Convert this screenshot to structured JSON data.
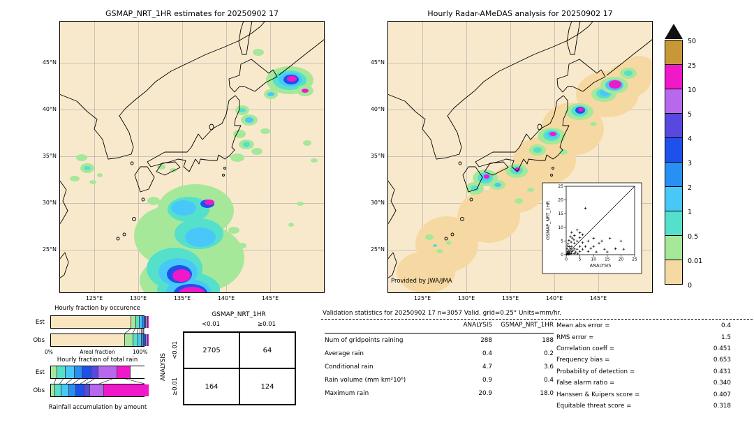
{
  "palette": {
    "map_bg": "#f9e9cc",
    "halo": "#f6d9a2",
    "cream": "#f9e6c0",
    "white": "#ffffff",
    "l1": "#a6e89a",
    "l2": "#55e0cc",
    "l3": "#48c8f8",
    "l4": "#2890f4",
    "l5": "#1e50ec",
    "l6": "#5848e0",
    "l7": "#b868ec",
    "l8": "#f018c8",
    "l9": "#c89838"
  },
  "chart_data": [
    {
      "id": "gsmap_map",
      "type": "heatmap",
      "title": "GSMAP_NRT_1HR estimates for 20250902 17",
      "units": "mm/hr",
      "lat_ticks": [
        "45°N",
        "40°N",
        "35°N",
        "30°N",
        "25°N"
      ],
      "lon_ticks": [
        "125°E",
        "130°E",
        "135°E",
        "140°E",
        "145°E"
      ],
      "lon_range": [
        121,
        151.2
      ],
      "lat_range": [
        20.4,
        49.5
      ],
      "blobs": [
        [
          303,
          105,
          10,
          7,
          "l1"
        ],
        [
          303,
          105,
          5,
          3,
          "l3"
        ],
        [
          330,
          85,
          34,
          20,
          "l1"
        ],
        [
          330,
          85,
          24,
          14,
          "l2"
        ],
        [
          331,
          84,
          17,
          10,
          "l3"
        ],
        [
          332,
          84,
          11,
          7,
          "l5"
        ],
        [
          333,
          83,
          7,
          4,
          "l8"
        ],
        [
          352,
          100,
          12,
          8,
          "l1"
        ],
        [
          352,
          100,
          5,
          3,
          "l8"
        ],
        [
          285,
          45,
          8,
          5,
          "l1"
        ],
        [
          262,
          128,
          10,
          7,
          "l1"
        ],
        [
          262,
          128,
          5,
          3,
          "l2"
        ],
        [
          272,
          142,
          12,
          8,
          "l1"
        ],
        [
          272,
          142,
          6,
          4,
          "l3"
        ],
        [
          258,
          162,
          9,
          6,
          "l1"
        ],
        [
          268,
          177,
          11,
          7,
          "l1"
        ],
        [
          268,
          177,
          5,
          4,
          "l2"
        ],
        [
          283,
          187,
          8,
          5,
          "l1"
        ],
        [
          255,
          196,
          10,
          6,
          "l1"
        ],
        [
          295,
          158,
          7,
          4,
          "l1"
        ],
        [
          32,
          196,
          8,
          5,
          "l1"
        ],
        [
          40,
          211,
          10,
          7,
          "l1"
        ],
        [
          40,
          211,
          5,
          3,
          "l2"
        ],
        [
          22,
          226,
          7,
          4,
          "l1"
        ],
        [
          48,
          231,
          5,
          3,
          "l1"
        ],
        [
          58,
          221,
          4,
          3,
          "l1"
        ],
        [
          146,
          209,
          6,
          4,
          "l1"
        ],
        [
          163,
          214,
          5,
          3,
          "l1"
        ],
        [
          250,
          300,
          8,
          5,
          "l1"
        ],
        [
          262,
          322,
          6,
          4,
          "l1"
        ],
        [
          135,
          258,
          9,
          6,
          "l1"
        ],
        [
          120,
          290,
          7,
          5,
          "l1"
        ],
        [
          195,
          272,
          55,
          38,
          "l1"
        ],
        [
          155,
          308,
          48,
          42,
          "l1"
        ],
        [
          205,
          340,
          60,
          48,
          "l1"
        ],
        [
          170,
          372,
          55,
          35,
          "l1"
        ],
        [
          185,
          270,
          30,
          18,
          "l2"
        ],
        [
          200,
          305,
          35,
          22,
          "l2"
        ],
        [
          165,
          355,
          40,
          30,
          "l2"
        ],
        [
          185,
          385,
          45,
          25,
          "l2"
        ],
        [
          178,
          268,
          18,
          11,
          "l3"
        ],
        [
          202,
          310,
          22,
          14,
          "l3"
        ],
        [
          170,
          360,
          28,
          20,
          "l3"
        ],
        [
          185,
          388,
          32,
          18,
          "l3"
        ],
        [
          212,
          262,
          10,
          6,
          "l5"
        ],
        [
          172,
          363,
          18,
          13,
          "l5"
        ],
        [
          188,
          390,
          24,
          13,
          "l5"
        ],
        [
          215,
          260,
          7,
          4,
          "l8"
        ],
        [
          175,
          365,
          13,
          9,
          "l8"
        ],
        [
          190,
          392,
          20,
          11,
          "l8"
        ],
        [
          160,
          398,
          12,
          7,
          "l8"
        ],
        [
          355,
          175,
          6,
          4,
          "l1"
        ],
        [
          365,
          200,
          5,
          3,
          "l1"
        ],
        [
          345,
          262,
          5,
          3,
          "l1"
        ],
        [
          332,
          292,
          4,
          3,
          "l1"
        ]
      ]
    },
    {
      "id": "radar_map",
      "type": "heatmap",
      "title": "Hourly Radar-AMeDAS analysis for 20250902 17",
      "credit": "Provided by JWA/JMA",
      "units": "mm/hr",
      "lat_ticks": [
        "45°N",
        "40°N",
        "35°N",
        "30°N",
        "25°N"
      ],
      "lon_ticks": [
        "125°E",
        "130°E",
        "135°E",
        "140°E",
        "145°E"
      ],
      "lon_range": [
        121,
        151.2
      ],
      "lat_range": [
        20.4,
        49.5
      ],
      "blobs": [
        [
          55,
          360,
          42,
          30,
          "halo"
        ],
        [
          85,
          320,
          45,
          40,
          "halo"
        ],
        [
          145,
          280,
          45,
          38,
          "halo"
        ],
        [
          185,
          240,
          40,
          35,
          "halo"
        ],
        [
          210,
          225,
          35,
          30,
          "halo"
        ],
        [
          225,
          200,
          45,
          35,
          "halo"
        ],
        [
          265,
          155,
          45,
          38,
          "halo"
        ],
        [
          315,
          105,
          45,
          33,
          "halo"
        ],
        [
          345,
          85,
          32,
          25,
          "halo"
        ],
        [
          360,
          70,
          25,
          20,
          "halo"
        ],
        [
          60,
          310,
          6,
          4,
          "l1"
        ],
        [
          75,
          330,
          5,
          3,
          "l1"
        ],
        [
          88,
          318,
          4,
          3,
          "l1"
        ],
        [
          68,
          322,
          3,
          2,
          "l2"
        ],
        [
          140,
          225,
          18,
          12,
          "l1"
        ],
        [
          140,
          225,
          11,
          8,
          "l2"
        ],
        [
          141,
          224,
          7,
          5,
          "l3"
        ],
        [
          142,
          223,
          4,
          3,
          "l8"
        ],
        [
          125,
          240,
          13,
          9,
          "l1"
        ],
        [
          125,
          240,
          6,
          4,
          "l2"
        ],
        [
          158,
          235,
          11,
          7,
          "l1"
        ],
        [
          158,
          235,
          5,
          3,
          "l3"
        ],
        [
          185,
          215,
          16,
          10,
          "l1"
        ],
        [
          185,
          214,
          9,
          6,
          "l2"
        ],
        [
          186,
          213,
          4,
          3,
          "l8"
        ],
        [
          235,
          165,
          20,
          12,
          "l1"
        ],
        [
          235,
          164,
          12,
          8,
          "l2"
        ],
        [
          236,
          163,
          8,
          5,
          "l3"
        ],
        [
          237,
          162,
          5,
          3,
          "l8"
        ],
        [
          215,
          185,
          12,
          8,
          "l1"
        ],
        [
          215,
          185,
          6,
          4,
          "l2"
        ],
        [
          275,
          130,
          20,
          12,
          "l1"
        ],
        [
          275,
          129,
          12,
          8,
          "l2"
        ],
        [
          276,
          128,
          7,
          5,
          "l5"
        ],
        [
          277,
          127,
          4,
          3,
          "l8"
        ],
        [
          310,
          105,
          18,
          11,
          "l1"
        ],
        [
          310,
          104,
          11,
          7,
          "l2"
        ],
        [
          311,
          103,
          7,
          5,
          "l3"
        ],
        [
          325,
          92,
          20,
          12,
          "l1"
        ],
        [
          325,
          92,
          13,
          8,
          "l3"
        ],
        [
          326,
          91,
          9,
          6,
          "l8"
        ],
        [
          345,
          75,
          12,
          8,
          "l1"
        ],
        [
          345,
          75,
          6,
          4,
          "l2"
        ],
        [
          188,
          258,
          6,
          4,
          "l1"
        ],
        [
          205,
          242,
          5,
          3,
          "l1"
        ],
        [
          252,
          188,
          6,
          4,
          "l1"
        ],
        [
          295,
          148,
          5,
          3,
          "l1"
        ]
      ]
    },
    {
      "id": "inset_scatter",
      "type": "scatter",
      "xlabel": "ANALYSIS",
      "ylabel": "GSMAP_NRT_1HR",
      "xlim": [
        0,
        25
      ],
      "ylim": [
        0,
        25
      ],
      "tick_labels": [
        "0",
        "5",
        "10",
        "15",
        "20",
        "25"
      ],
      "identity_line": true,
      "marker": "+",
      "points": [
        [
          0.2,
          0.1
        ],
        [
          0.4,
          0.6
        ],
        [
          0.5,
          0.2
        ],
        [
          0.6,
          1.2
        ],
        [
          0.8,
          0.4
        ],
        [
          1,
          0.1
        ],
        [
          1,
          1.6
        ],
        [
          1.2,
          0.8
        ],
        [
          1.5,
          0.3
        ],
        [
          1.6,
          2.2
        ],
        [
          2,
          0.5
        ],
        [
          2,
          1.1
        ],
        [
          2,
          3
        ],
        [
          2.5,
          1.5
        ],
        [
          3,
          0.4
        ],
        [
          3,
          2.1
        ],
        [
          3,
          4.2
        ],
        [
          3.5,
          1
        ],
        [
          4,
          2
        ],
        [
          4,
          5
        ],
        [
          4.2,
          0.3
        ],
        [
          5,
          1.2
        ],
        [
          5,
          3
        ],
        [
          5,
          6.2
        ],
        [
          6,
          2
        ],
        [
          6,
          4.4
        ],
        [
          7,
          17
        ],
        [
          7,
          3
        ],
        [
          8,
          1.2
        ],
        [
          8,
          5
        ],
        [
          9,
          2.3
        ],
        [
          10,
          3
        ],
        [
          10,
          6
        ],
        [
          11,
          1
        ],
        [
          12,
          4.2
        ],
        [
          13,
          5
        ],
        [
          14,
          2
        ],
        [
          15,
          1
        ],
        [
          16,
          6
        ],
        [
          18,
          2.2
        ],
        [
          20,
          5
        ],
        [
          21,
          2
        ],
        [
          2.2,
          6.1
        ],
        [
          1.8,
          4.6
        ],
        [
          0.5,
          3.1
        ],
        [
          1,
          5.2
        ],
        [
          3,
          7
        ],
        [
          2,
          8.1
        ],
        [
          4,
          9
        ],
        [
          6,
          7.3
        ],
        [
          5,
          8
        ],
        [
          0.3,
          2.1
        ],
        [
          1.5,
          6.6
        ],
        [
          2.8,
          5.4
        ],
        [
          0.7,
          4
        ],
        [
          1.2,
          2.9
        ]
      ]
    },
    {
      "id": "colorbar",
      "type": "legend",
      "units": "mm/hr",
      "overflow_marker": "black-up-triangle",
      "boundary_labels": [
        "50",
        "25",
        "10",
        "5",
        "4",
        "3",
        "2",
        "1",
        "0.5",
        "0.01",
        "0"
      ],
      "segment_colors_top_to_bottom": [
        "#c89838",
        "#f018c8",
        "#b868ec",
        "#5848e0",
        "#1e50ec",
        "#2890f4",
        "#48c8f8",
        "#55e0cc",
        "#a6e89a",
        "#f6d9a2"
      ]
    },
    {
      "id": "occurrence_bars",
      "type": "bar",
      "title": "Hourly fraction by occurence",
      "rows": [
        "Est",
        "Obs"
      ],
      "x0": "0%",
      "x1": "100%",
      "xlabel": "Areal fraction",
      "series": [
        {
          "name": "Est",
          "segments": [
            [
              "cream",
              85.5
            ],
            [
              "l1",
              4.5
            ],
            [
              "l2",
              3
            ],
            [
              "l3",
              2.2
            ],
            [
              "l4",
              1.5
            ],
            [
              "l5",
              1.2
            ],
            [
              "l7",
              1.1
            ],
            [
              "l8",
              1
            ]
          ]
        },
        {
          "name": "Obs",
          "segments": [
            [
              "cream",
              79
            ],
            [
              "l1",
              8.5
            ],
            [
              "l2",
              4.5
            ],
            [
              "l3",
              2.8
            ],
            [
              "l4",
              1.8
            ],
            [
              "l5",
              1.4
            ],
            [
              "l7",
              1
            ],
            [
              "l8",
              1
            ]
          ]
        }
      ]
    },
    {
      "id": "totalrain_bars",
      "type": "bar",
      "title": "Hourly fraction of total rain",
      "rows": [
        "Est",
        "Obs"
      ],
      "footer": "Rainfall accumulation by amount",
      "series": [
        {
          "name": "Est",
          "segments": [
            [
              "l1",
              6
            ],
            [
              "l2",
              8
            ],
            [
              "l3",
              9
            ],
            [
              "l4",
              8
            ],
            [
              "l5",
              9
            ],
            [
              "l6",
              7
            ],
            [
              "l7",
              19
            ],
            [
              "l8",
              14
            ],
            [
              "white",
              20
            ]
          ]
        },
        {
          "name": "Obs",
          "segments": [
            [
              "l1",
              4
            ],
            [
              "l2",
              6
            ],
            [
              "l3",
              7
            ],
            [
              "l4",
              7
            ],
            [
              "l5",
              8
            ],
            [
              "l6",
              6
            ],
            [
              "l7",
              14
            ],
            [
              "l8",
              48
            ]
          ]
        }
      ]
    },
    {
      "id": "contingency_table",
      "type": "table",
      "col_group": "GSMAP_NRT_1HR",
      "row_group": "ANALYSIS",
      "cols": [
        "<0.01",
        "≥0.01"
      ],
      "rows": [
        "<0.01",
        "≥0.01"
      ],
      "values": [
        [
          "2705",
          "64"
        ],
        [
          "164",
          "124"
        ]
      ]
    },
    {
      "id": "validation_stats",
      "type": "table",
      "header": "Validation statistics for 20250902 17  n=3057 Valid. grid=0.25° Units=mm/hr.",
      "columns": [
        "ANALYSIS",
        "GSMAP_NRT_1HR"
      ],
      "rows": [
        {
          "label": "Num of gridpoints raining",
          "values": [
            "288",
            "188"
          ]
        },
        {
          "label": "Average rain",
          "values": [
            "0.4",
            "0.2"
          ]
        },
        {
          "label": "Conditional rain",
          "values": [
            "4.7",
            "3.6"
          ]
        },
        {
          "label": "Rain volume (mm km²10⁶)",
          "values": [
            "0.9",
            "0.4"
          ]
        },
        {
          "label": "Maximum rain",
          "values": [
            "20.9",
            "18.0"
          ]
        }
      ]
    },
    {
      "id": "skill_scores",
      "type": "table",
      "rows": [
        {
          "label": "Mean abs error =",
          "value": "0.4"
        },
        {
          "label": "RMS error =",
          "value": "1.5"
        },
        {
          "label": "Correlation coeff =",
          "value": "0.451"
        },
        {
          "label": "Frequency bias =",
          "value": "0.653"
        },
        {
          "label": "Probability of detection =",
          "value": "0.431"
        },
        {
          "label": "False alarm ratio =",
          "value": "0.340"
        },
        {
          "label": "Hanssen & Kuipers score =",
          "value": "0.407"
        },
        {
          "label": "Equitable threat score =",
          "value": "0.318"
        }
      ]
    }
  ]
}
